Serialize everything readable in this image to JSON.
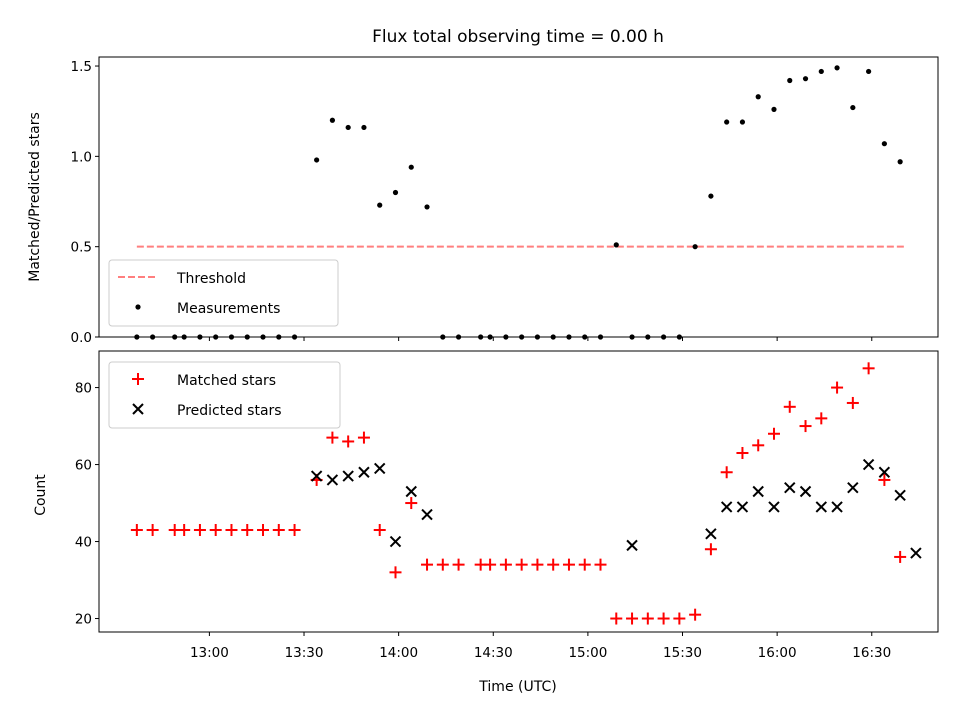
{
  "chart_data": [
    {
      "type": "scatter",
      "title": "Flux total observing time = 0.00 h",
      "ylabel": "Matched/Predicted stars",
      "xlabel": "",
      "ylim": [
        0,
        1.55
      ],
      "xlim": [
        "12:25",
        "16:51"
      ],
      "yticks": [
        "0.0",
        "0.5",
        "1.0",
        "1.5"
      ],
      "legend": {
        "location": "lower-left",
        "entries": [
          "Threshold",
          "Measurements"
        ]
      },
      "threshold": {
        "name": "Threshold",
        "value": 0.5,
        "x_start": "12:37",
        "x_end": "16:41",
        "color": "#ff7f7f",
        "style": "dashed"
      },
      "series": [
        {
          "name": "Measurements",
          "marker": "dot",
          "color": "#000000",
          "x": [
            "12:37",
            "12:42",
            "12:49",
            "12:52",
            "12:57",
            "13:02",
            "13:07",
            "13:12",
            "13:17",
            "13:22",
            "13:27",
            "13:34",
            "13:39",
            "13:44",
            "13:49",
            "13:54",
            "13:59",
            "14:04",
            "14:09",
            "14:14",
            "14:19",
            "14:26",
            "14:29",
            "14:34",
            "14:39",
            "14:44",
            "14:49",
            "14:54",
            "14:59",
            "15:04",
            "15:09",
            "15:14",
            "15:19",
            "15:24",
            "15:29",
            "15:34",
            "15:39",
            "15:44",
            "15:49",
            "15:54",
            "15:59",
            "16:04",
            "16:09",
            "16:14",
            "16:19",
            "16:24",
            "16:29",
            "16:34",
            "16:39",
            "16:44"
          ],
          "values": [
            0,
            0,
            0,
            0,
            0,
            0,
            0,
            0,
            0,
            0,
            0,
            0.98,
            1.2,
            1.16,
            1.16,
            0.73,
            0.8,
            0.94,
            0.72,
            0,
            0,
            0,
            0,
            0,
            0,
            0,
            0,
            0,
            0,
            0,
            0.51,
            0,
            0,
            0,
            0,
            0.5,
            0.78,
            1.19,
            1.19,
            1.33,
            1.26,
            1.42,
            1.43,
            1.47,
            1.49,
            1.27,
            1.47,
            1.07,
            0.97,
            null
          ]
        }
      ]
    },
    {
      "type": "scatter",
      "title": "",
      "xlabel": "Time (UTC)",
      "ylabel": "Count",
      "ylim": [
        16.5,
        89.5
      ],
      "xlim": [
        "12:25",
        "16:51"
      ],
      "xticks": [
        "13:00",
        "13:30",
        "14:00",
        "14:30",
        "15:00",
        "15:30",
        "16:00",
        "16:30"
      ],
      "yticks": [
        "20",
        "40",
        "60",
        "80"
      ],
      "legend": {
        "location": "upper-left",
        "entries": [
          "Matched stars",
          "Predicted stars"
        ]
      },
      "series": [
        {
          "name": "Matched stars",
          "marker": "plus",
          "color": "#ff0000",
          "x": [
            "12:37",
            "12:42",
            "12:49",
            "12:52",
            "12:57",
            "13:02",
            "13:07",
            "13:12",
            "13:17",
            "13:22",
            "13:27",
            "13:34",
            "13:39",
            "13:44",
            "13:49",
            "13:54",
            "13:59",
            "14:04",
            "14:09",
            "14:14",
            "14:19",
            "14:26",
            "14:29",
            "14:34",
            "14:39",
            "14:44",
            "14:49",
            "14:54",
            "14:59",
            "15:04",
            "15:09",
            "15:14",
            "15:19",
            "15:24",
            "15:29",
            "15:34",
            "15:39",
            "15:44",
            "15:49",
            "15:54",
            "15:59",
            "16:04",
            "16:09",
            "16:14",
            "16:19",
            "16:24",
            "16:29",
            "16:34",
            "16:39",
            "16:44"
          ],
          "values": [
            43,
            43,
            43,
            43,
            43,
            43,
            43,
            43,
            43,
            43,
            43,
            56,
            67,
            66,
            67,
            43,
            32,
            50,
            34,
            34,
            34,
            34,
            34,
            34,
            34,
            34,
            34,
            34,
            34,
            34,
            20,
            20,
            20,
            20,
            20,
            21,
            38,
            58,
            63,
            65,
            68,
            75,
            70,
            72,
            80,
            76,
            85,
            56,
            36,
            null
          ]
        },
        {
          "name": "Predicted stars",
          "marker": "x",
          "color": "#000000",
          "x": [
            "13:34",
            "13:39",
            "13:44",
            "13:49",
            "13:54",
            "13:59",
            "14:04",
            "14:09",
            "15:14",
            "15:39",
            "15:44",
            "15:49",
            "15:54",
            "15:59",
            "16:04",
            "16:09",
            "16:14",
            "16:19",
            "16:24",
            "16:29",
            "16:34",
            "16:39",
            "16:44"
          ],
          "values": [
            57,
            56,
            57,
            58,
            59,
            40,
            53,
            47,
            39,
            42,
            49,
            49,
            53,
            49,
            54,
            53,
            49,
            49,
            54,
            60,
            58,
            52,
            37
          ]
        }
      ]
    }
  ]
}
